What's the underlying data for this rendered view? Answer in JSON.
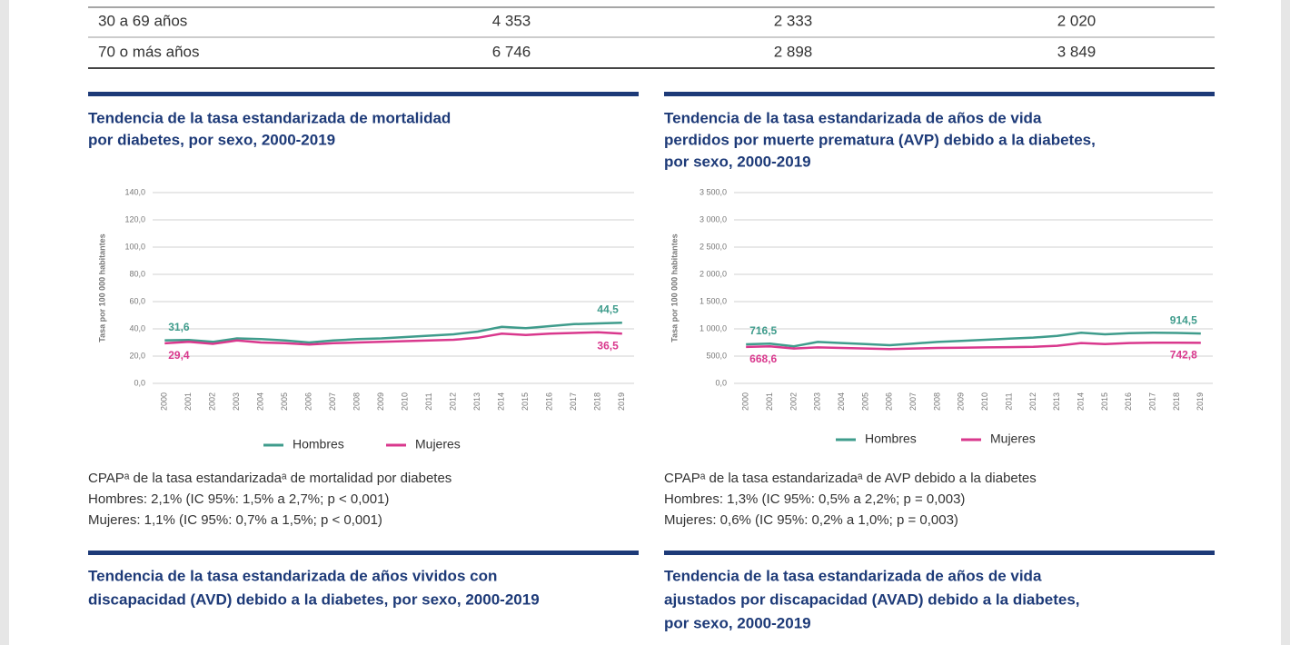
{
  "table": {
    "rows": [
      [
        "30 a 69 años",
        "4 353",
        "2 333",
        "2 020"
      ],
      [
        "70 o más años",
        "6 746",
        "2 898",
        "3 849"
      ]
    ]
  },
  "chart_data": [
    {
      "type": "line",
      "title": [
        "Tendencia de la tasa estandarizada de mortalidad",
        "por diabetes, por sexo, 2000-2019"
      ],
      "y_label": "Tasa por 100 000 habitantes",
      "categories": [
        "2000",
        "2001",
        "2002",
        "2003",
        "2004",
        "2005",
        "2006",
        "2007",
        "2008",
        "2009",
        "2010",
        "2011",
        "2012",
        "2013",
        "2014",
        "2015",
        "2016",
        "2017",
        "2018",
        "2019"
      ],
      "ylim": [
        0,
        140
      ],
      "yticks": [
        {
          "value": 0,
          "label": "0,0"
        },
        {
          "value": 20,
          "label": "20,0"
        },
        {
          "value": 40,
          "label": "40,0"
        },
        {
          "value": 60,
          "label": "60,0"
        },
        {
          "value": 80,
          "label": "80,0"
        },
        {
          "value": 100,
          "label": "100,0"
        },
        {
          "value": 120,
          "label": "120,0"
        },
        {
          "value": 140,
          "label": "140,0"
        }
      ],
      "grid": true,
      "series": [
        {
          "name": "Hombres",
          "color": "#3f9c8c",
          "values": [
            31.6,
            31.8,
            30.5,
            33.0,
            32.5,
            31.5,
            30.0,
            31.5,
            32.5,
            33.0,
            34.0,
            35.0,
            36.0,
            38.0,
            41.5,
            40.5,
            42.0,
            43.5,
            44.0,
            44.5
          ],
          "value_labels": [
            "31,6",
            null,
            null,
            null,
            null,
            null,
            null,
            null,
            null,
            null,
            null,
            null,
            null,
            null,
            null,
            null,
            null,
            null,
            null,
            "44,5"
          ]
        },
        {
          "name": "Mujeres",
          "color": "#d9388d",
          "values": [
            29.4,
            30.5,
            29.0,
            31.5,
            30.0,
            29.5,
            28.5,
            29.5,
            30.0,
            30.5,
            31.0,
            31.5,
            32.0,
            33.5,
            36.5,
            35.5,
            36.5,
            37.0,
            37.5,
            36.5
          ],
          "value_labels": [
            "29,4",
            null,
            null,
            null,
            null,
            null,
            null,
            null,
            null,
            null,
            null,
            null,
            null,
            null,
            null,
            null,
            null,
            null,
            null,
            "36,5"
          ]
        }
      ],
      "notes": [
        "CPAPᵃ de la tasa estandarizadaᵃ de mortalidad por diabetes",
        "Hombres:  2,1% (IC 95%: 1,5% a 2,7%; p < 0,001)",
        "Mujeres:   1,1% (IC 95%: 0,7% a 1,5%; p < 0,001)"
      ]
    },
    {
      "type": "line",
      "title": [
        "Tendencia de la tasa estandarizada de años de vida",
        "perdidos por muerte prematura (AVP) debido a la diabetes,",
        "por sexo, 2000-2019"
      ],
      "y_label": "Tasa por 100 000 habitantes",
      "categories": [
        "2000",
        "2001",
        "2002",
        "2003",
        "2004",
        "2005",
        "2006",
        "2007",
        "2008",
        "2009",
        "2010",
        "2011",
        "2012",
        "2013",
        "2014",
        "2015",
        "2016",
        "2017",
        "2018",
        "2019"
      ],
      "ylim": [
        0,
        3500
      ],
      "yticks": [
        {
          "value": 0,
          "label": "0,0"
        },
        {
          "value": 500,
          "label": "500,0"
        },
        {
          "value": 1000,
          "label": "1 000,0"
        },
        {
          "value": 1500,
          "label": "1 500,0"
        },
        {
          "value": 2000,
          "label": "2 000,0"
        },
        {
          "value": 2500,
          "label": "2 500,0"
        },
        {
          "value": 3000,
          "label": "3 000,0"
        },
        {
          "value": 3500,
          "label": "3 500,0"
        }
      ],
      "grid": true,
      "series": [
        {
          "name": "Hombres",
          "color": "#3f9c8c",
          "values": [
            716.5,
            730,
            680,
            760,
            740,
            720,
            700,
            730,
            760,
            780,
            800,
            820,
            840,
            870,
            930,
            900,
            920,
            930,
            925,
            914.5
          ],
          "value_labels": [
            "716,5",
            null,
            null,
            null,
            null,
            null,
            null,
            null,
            null,
            null,
            null,
            null,
            null,
            null,
            null,
            null,
            null,
            null,
            null,
            "914,5"
          ]
        },
        {
          "name": "Mujeres",
          "color": "#d9388d",
          "values": [
            668.6,
            680,
            640,
            660,
            650,
            640,
            630,
            640,
            650,
            655,
            660,
            665,
            670,
            690,
            740,
            720,
            740,
            745,
            745,
            742.8
          ],
          "value_labels": [
            "668,6",
            null,
            null,
            null,
            null,
            null,
            null,
            null,
            null,
            null,
            null,
            null,
            null,
            null,
            null,
            null,
            null,
            null,
            null,
            "742,8"
          ]
        }
      ],
      "notes": [
        "CPAPᵃ de la tasa estandarizadaᵃ de AVP debido a la diabetes",
        "Hombres:   1,3% (IC 95%: 0,5% a 2,2%; p = 0,003)",
        "Mujeres:    0,6% (IC 95%: 0,2% a 1,0%; p = 0,003)"
      ]
    }
  ],
  "sections": [
    {
      "title": [
        "Tendencia de la tasa estandarizada de años vividos con",
        "discapacidad (AVD) debido a la diabetes, por sexo, 2000-2019"
      ]
    },
    {
      "title": [
        "Tendencia de la tasa estandarizada de años de vida",
        "ajustados por discapacidad (AVAD) debido a la diabetes,",
        "por sexo, 2000-2019"
      ]
    }
  ]
}
